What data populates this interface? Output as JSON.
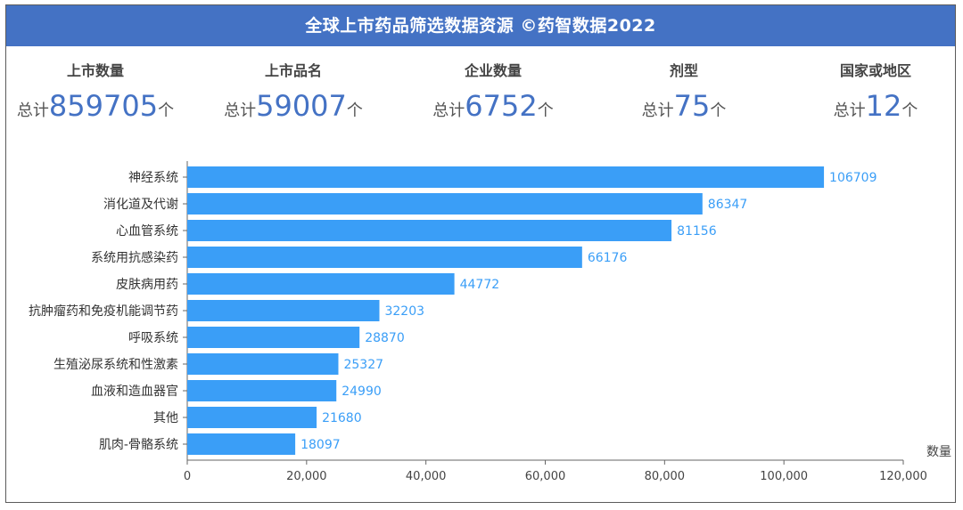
{
  "title": "全球上市药品筛选数据资源 ©药智数据2022",
  "stats": [
    {
      "label": "上市数量",
      "prefix": "总计",
      "value": "859705",
      "unit": "个"
    },
    {
      "label": "上市品名",
      "prefix": "总计",
      "value": "59007",
      "unit": "个"
    },
    {
      "label": "企业数量",
      "prefix": "总计",
      "value": "6752",
      "unit": "个"
    },
    {
      "label": "剂型",
      "prefix": "总计",
      "value": "75",
      "unit": "个"
    },
    {
      "label": "国家或地区",
      "prefix": "总计",
      "value": "12",
      "unit": "个"
    }
  ],
  "colors": {
    "title_bg": "#4472c4",
    "bar": "#3a9ef7",
    "value_label": "#3a9ef7",
    "stat_value": "#4472c4"
  },
  "chart_data": {
    "type": "bar",
    "orientation": "horizontal",
    "categories": [
      "神经系统",
      "消化道及代谢",
      "心血管系统",
      "系统用抗感染药",
      "皮肤病用药",
      "抗肿瘤药和免疫机能调节药",
      "呼吸系统",
      "生殖泌尿系统和性激素",
      "血液和造血器官",
      "其他",
      "肌肉-骨骼系统"
    ],
    "values": [
      106709,
      86347,
      81156,
      66176,
      44772,
      32203,
      28870,
      25327,
      24990,
      21680,
      18097
    ],
    "xlabel": "数量",
    "xlim": [
      0,
      120000
    ],
    "xticks": [
      0,
      20000,
      40000,
      60000,
      80000,
      100000,
      120000
    ],
    "xtick_labels": [
      "0",
      "20,000",
      "40,000",
      "60,000",
      "80,000",
      "100,000",
      "120,000"
    ],
    "data_labels": true,
    "grid": false
  }
}
